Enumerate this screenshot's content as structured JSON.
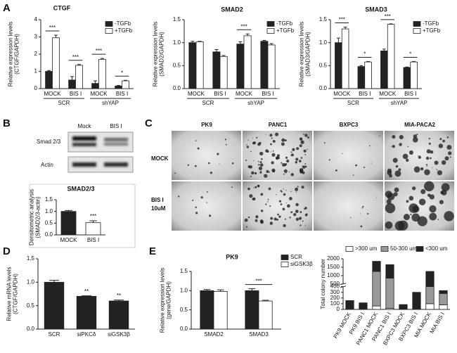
{
  "figure": {
    "panel_labels": [
      "A",
      "B",
      "C",
      "D",
      "E"
    ]
  },
  "blot": {
    "lanes": [
      "Mock",
      "BIS I"
    ],
    "rows": [
      "Smad 2/3",
      "Actin"
    ]
  },
  "micrographs": {
    "columns": [
      "PK9",
      "PANC1",
      "BXPC3",
      "MIA-PACA2"
    ],
    "rows": [
      [
        "MOCK"
      ],
      [
        "BIS I",
        "10uM"
      ]
    ]
  },
  "chart_data": [
    {
      "type": "bar",
      "title": "CTGF",
      "y_label": [
        "Relative expression levels",
        "(CTGF/GAPDH)"
      ],
      "categories": [
        "MOCK",
        "BIS I",
        "MOCK",
        "BIS I"
      ],
      "groups": [
        "SCR",
        "shYAP"
      ],
      "series": [
        {
          "name": "-TGFb",
          "color": "#222222",
          "values": [
            1.0,
            0.5,
            0.3,
            0.15
          ],
          "errors": [
            0.05,
            0.2,
            0.15,
            0.03
          ]
        },
        {
          "name": "+TGFb",
          "color": "#ffffff",
          "values": [
            2.95,
            1.35,
            1.7,
            0.45
          ],
          "errors": [
            0.15,
            0.05,
            0.05,
            0.03
          ]
        }
      ],
      "significance": [
        "***",
        "***",
        "***",
        "*"
      ],
      "significance_style": "bracket",
      "ylim": [
        0,
        4
      ],
      "yticks": [
        0,
        1,
        2,
        3,
        4
      ],
      "legend": "top-right"
    },
    {
      "type": "bar",
      "title": "SMAD2",
      "y_label": [
        "Relative expression levels",
        "(SMAD2/GAPDH)"
      ],
      "categories": [
        "MOCK",
        "BIS I",
        "MOCK",
        "BIS I"
      ],
      "groups": [
        "SCR",
        "shYAP"
      ],
      "series": [
        {
          "name": "-TGFb",
          "color": "#222222",
          "values": [
            1.0,
            0.8,
            0.97,
            1.03
          ],
          "errors": [
            0.03,
            0.05,
            0.05,
            0.02
          ]
        },
        {
          "name": "+TGFb",
          "color": "#ffffff",
          "values": [
            1.02,
            0.7,
            1.15,
            0.95
          ],
          "errors": [
            0.01,
            0.02,
            0.04,
            0.03
          ]
        }
      ],
      "significance": [
        null,
        null,
        "***",
        null
      ],
      "significance_style": "bracket",
      "ylim": [
        0,
        1.5
      ],
      "yticks": [
        {
          "value": 0,
          "label": "0.0"
        },
        0.5,
        {
          "value": 1,
          "label": "1.0"
        },
        1.5
      ],
      "legend": "top-right"
    },
    {
      "type": "bar",
      "title": "SMAD3",
      "y_label": [
        "Relative expression levels",
        "(SMAD3/GAPDH)"
      ],
      "categories": [
        "MOCK",
        "BIS I",
        "MOCK",
        "BIS I"
      ],
      "groups": [
        "SCR",
        "shYAP"
      ],
      "series": [
        {
          "name": "-TGFb",
          "color": "#222222",
          "values": [
            1.0,
            0.48,
            0.82,
            0.46
          ],
          "errors": [
            0.1,
            0.02,
            0.04,
            0.01
          ]
        },
        {
          "name": "+TGFb",
          "color": "#ffffff",
          "values": [
            1.3,
            0.58,
            1.4,
            0.58
          ],
          "errors": [
            0.04,
            0.01,
            0.01,
            0.01
          ]
        }
      ],
      "significance": [
        "***",
        "*",
        "***",
        "*"
      ],
      "significance_style": "bracket",
      "ylim": [
        0,
        1.5
      ],
      "yticks": [
        {
          "value": 0,
          "label": "0.0"
        },
        0.5,
        {
          "value": 1,
          "label": "1.0"
        },
        1.5
      ],
      "legend": "top-right"
    },
    {
      "type": "bar",
      "title": "SMAD2/3",
      "y_label": [
        "Densitometric analysis",
        "(SMAD2/3-actin)"
      ],
      "categories": [
        "MOCK",
        "BIS I"
      ],
      "series": [
        {
          "colors": [
            "#222222",
            "#ffffff"
          ],
          "values": [
            1.0,
            0.52
          ],
          "errors": [
            0.04,
            0.08
          ]
        }
      ],
      "significance": [
        null,
        "***"
      ],
      "significance_style": "text",
      "ylim": [
        0,
        1.5
      ],
      "yticks": [
        {
          "value": 0,
          "label": "0.0"
        },
        0.5,
        {
          "value": 1,
          "label": "1.0"
        },
        1.5
      ]
    },
    {
      "type": "bar",
      "y_label": [
        "Relative mRNA levels",
        "(CTGF/GAPDH)"
      ],
      "categories": [
        "SCR",
        "siPKCδ",
        "siGSK3β"
      ],
      "series": [
        {
          "color": "#222222",
          "values": [
            1.0,
            0.7,
            0.6
          ],
          "errors": [
            0.04,
            0.01,
            0.02
          ]
        }
      ],
      "significance": [
        null,
        "**",
        "**"
      ],
      "significance_style": "text",
      "ylim": [
        0,
        1.5
      ],
      "yticks": [
        {
          "value": 0,
          "label": "0.0"
        },
        0.5,
        {
          "value": 1,
          "label": "1.0"
        },
        1.5
      ]
    },
    {
      "type": "bar",
      "title": "PK9",
      "y_label": [
        "Relative expression levels",
        "(gene/GAPDH)"
      ],
      "categories": [
        "SMAD2",
        "SMAD3"
      ],
      "series": [
        {
          "name": "SCR",
          "color": "#222222",
          "values": [
            1.0,
            1.0
          ],
          "errors": [
            0.03,
            0.05
          ]
        },
        {
          "name": "siGSK3β",
          "color": "#ffffff",
          "values": [
            0.98,
            0.73
          ],
          "errors": [
            0.04,
            0.02
          ]
        }
      ],
      "significance": [
        null,
        "***"
      ],
      "significance_style": "bracket",
      "ylim": [
        0,
        1.5
      ],
      "yticks": [
        {
          "value": 0,
          "label": "0.0"
        },
        0.5,
        {
          "value": 1,
          "label": "1.0"
        },
        1.5
      ],
      "legend": "top-right"
    },
    {
      "type": "stacked_bar",
      "y_label": [
        "Total colony number"
      ],
      "categories": [
        "PK9 MOCK",
        "PK9 BIS I",
        "PANC1 MOCK",
        "PANC1 BIS I",
        "BXPC3 MOCK",
        "BXPC3 BIS I",
        "MIA MOCK",
        "MIA BIS I"
      ],
      "series": [
        {
          "name": ">300 um",
          "color": "#ffffff",
          "values": [
            0,
            0,
            60,
            20,
            0,
            0,
            100,
            80
          ]
        },
        {
          "name": "50-300 um",
          "color": "#999999",
          "values": [
            0,
            0,
            1190,
            830,
            0,
            0,
            300,
            200
          ]
        },
        {
          "name": "<300 um",
          "color": "#222222",
          "values": [
            155,
            115,
            600,
            800,
            85,
            300,
            850,
            50
          ]
        }
      ],
      "ylim": [
        0,
        2000
      ],
      "ybreak": [
        400,
        500
      ],
      "yticks": [
        0,
        100,
        200,
        300,
        400,
        500,
        1000,
        1500,
        2000
      ],
      "rotate_labels": true,
      "legend": "top"
    }
  ]
}
